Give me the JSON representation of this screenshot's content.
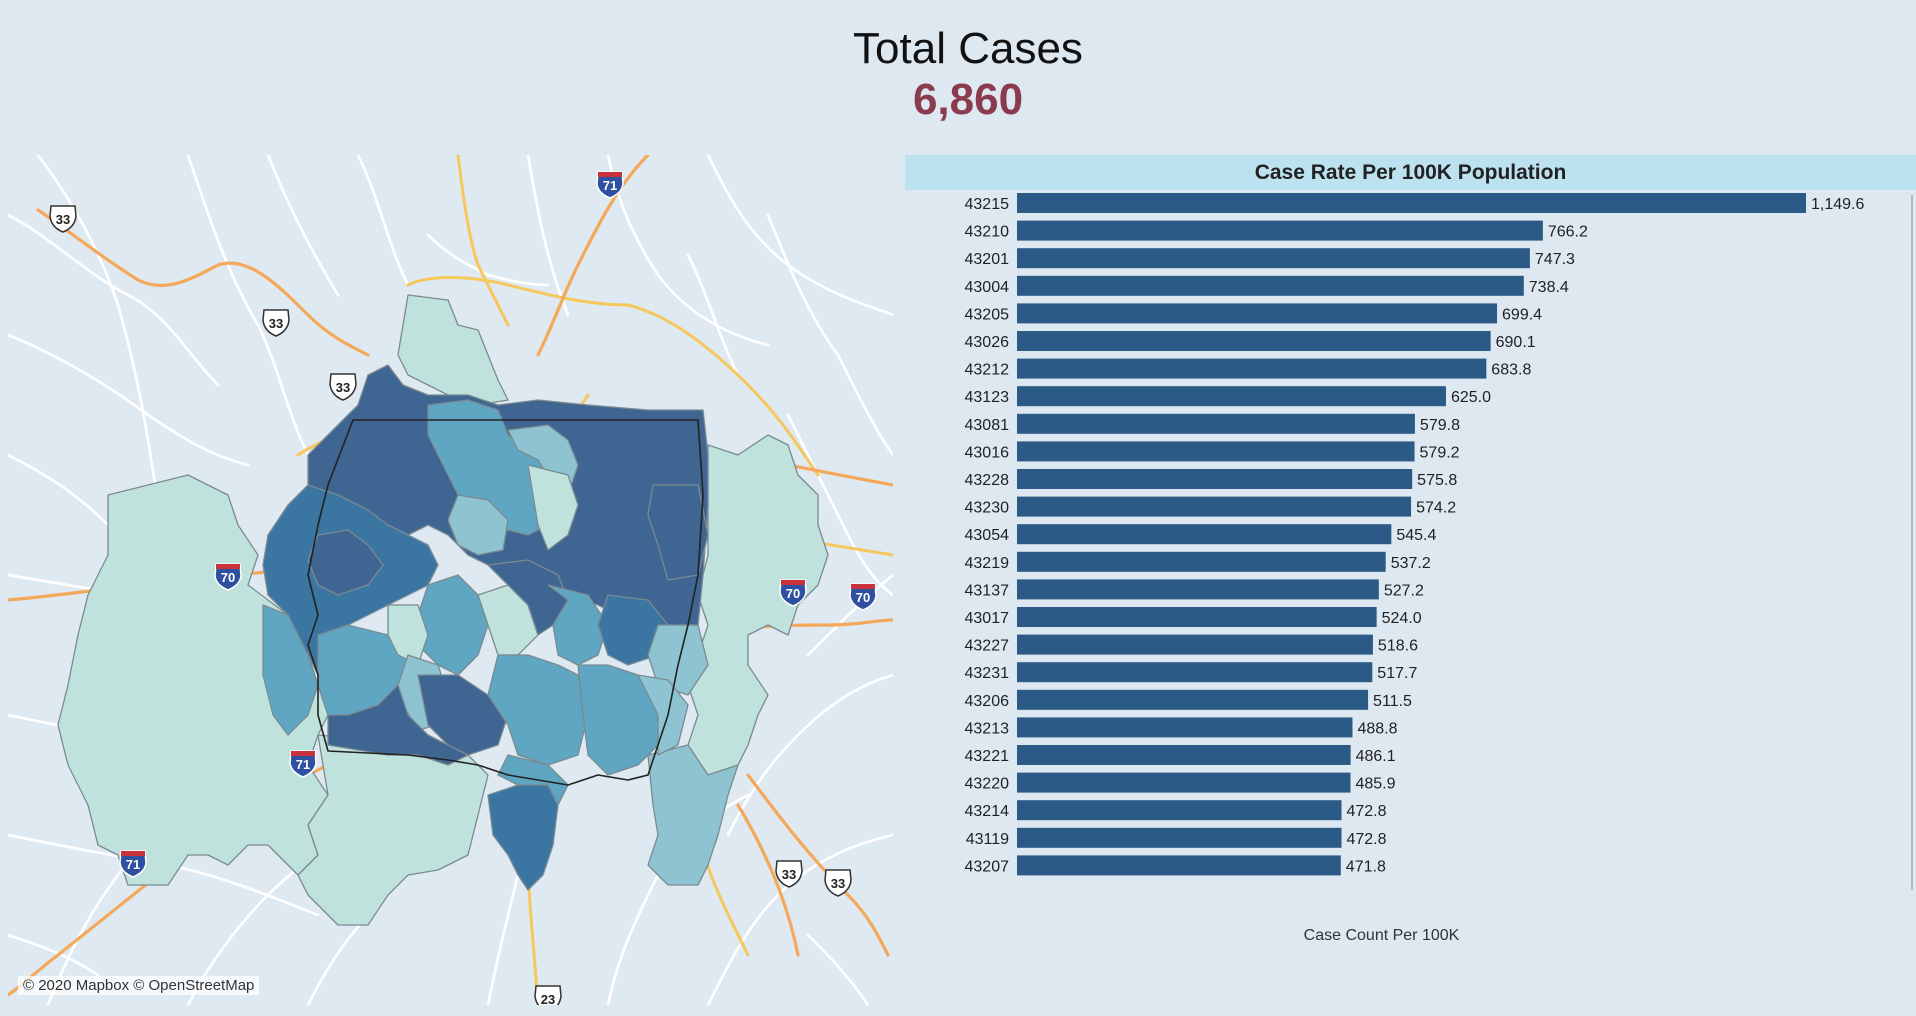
{
  "header": {
    "title": "Total Cases",
    "total": "6,860"
  },
  "map": {
    "attribution": "© 2020 Mapbox © OpenStreetMap",
    "highway_shields": [
      {
        "label": "33",
        "type": "us"
      },
      {
        "label": "33",
        "type": "us"
      },
      {
        "label": "33",
        "type": "us"
      },
      {
        "label": "33",
        "type": "us"
      },
      {
        "label": "33",
        "type": "us"
      },
      {
        "label": "23",
        "type": "us"
      },
      {
        "label": "71",
        "type": "interstate"
      },
      {
        "label": "71",
        "type": "interstate"
      },
      {
        "label": "71",
        "type": "interstate"
      },
      {
        "label": "70",
        "type": "interstate"
      },
      {
        "label": "70",
        "type": "interstate"
      },
      {
        "label": "70",
        "type": "interstate"
      }
    ],
    "colors": {
      "light": "#bfe3dc",
      "mid": "#8ec3d1",
      "mid2": "#5fa6c2",
      "dark": "#3b76a2",
      "darkest": "#3f6592"
    }
  },
  "chart_data": {
    "type": "bar",
    "orientation": "horizontal",
    "title": "Case Rate Per 100K Population",
    "xlabel": "Case Count Per 100K",
    "bar_color": "#2b5a87",
    "categories": [
      "43215",
      "43210",
      "43201",
      "43004",
      "43205",
      "43026",
      "43212",
      "43123",
      "43081",
      "43016",
      "43228",
      "43230",
      "43054",
      "43219",
      "43137",
      "43017",
      "43227",
      "43231",
      "43206",
      "43213",
      "43221",
      "43220",
      "43214",
      "43119",
      "43207"
    ],
    "values": [
      1149.6,
      766.2,
      747.3,
      738.4,
      699.4,
      690.1,
      683.8,
      625.0,
      579.8,
      579.2,
      575.8,
      574.2,
      545.4,
      537.2,
      527.2,
      524.0,
      518.6,
      517.7,
      511.5,
      488.8,
      486.1,
      485.9,
      472.8,
      472.8,
      471.8
    ],
    "value_labels": [
      "1,149.6",
      "766.2",
      "747.3",
      "738.4",
      "699.4",
      "690.1",
      "683.8",
      "625.0",
      "579.8",
      "579.2",
      "575.8",
      "574.2",
      "545.4",
      "537.2",
      "527.2",
      "524.0",
      "518.6",
      "517.7",
      "511.5",
      "488.8",
      "486.1",
      "485.9",
      "472.8",
      "472.8",
      "471.8"
    ]
  }
}
